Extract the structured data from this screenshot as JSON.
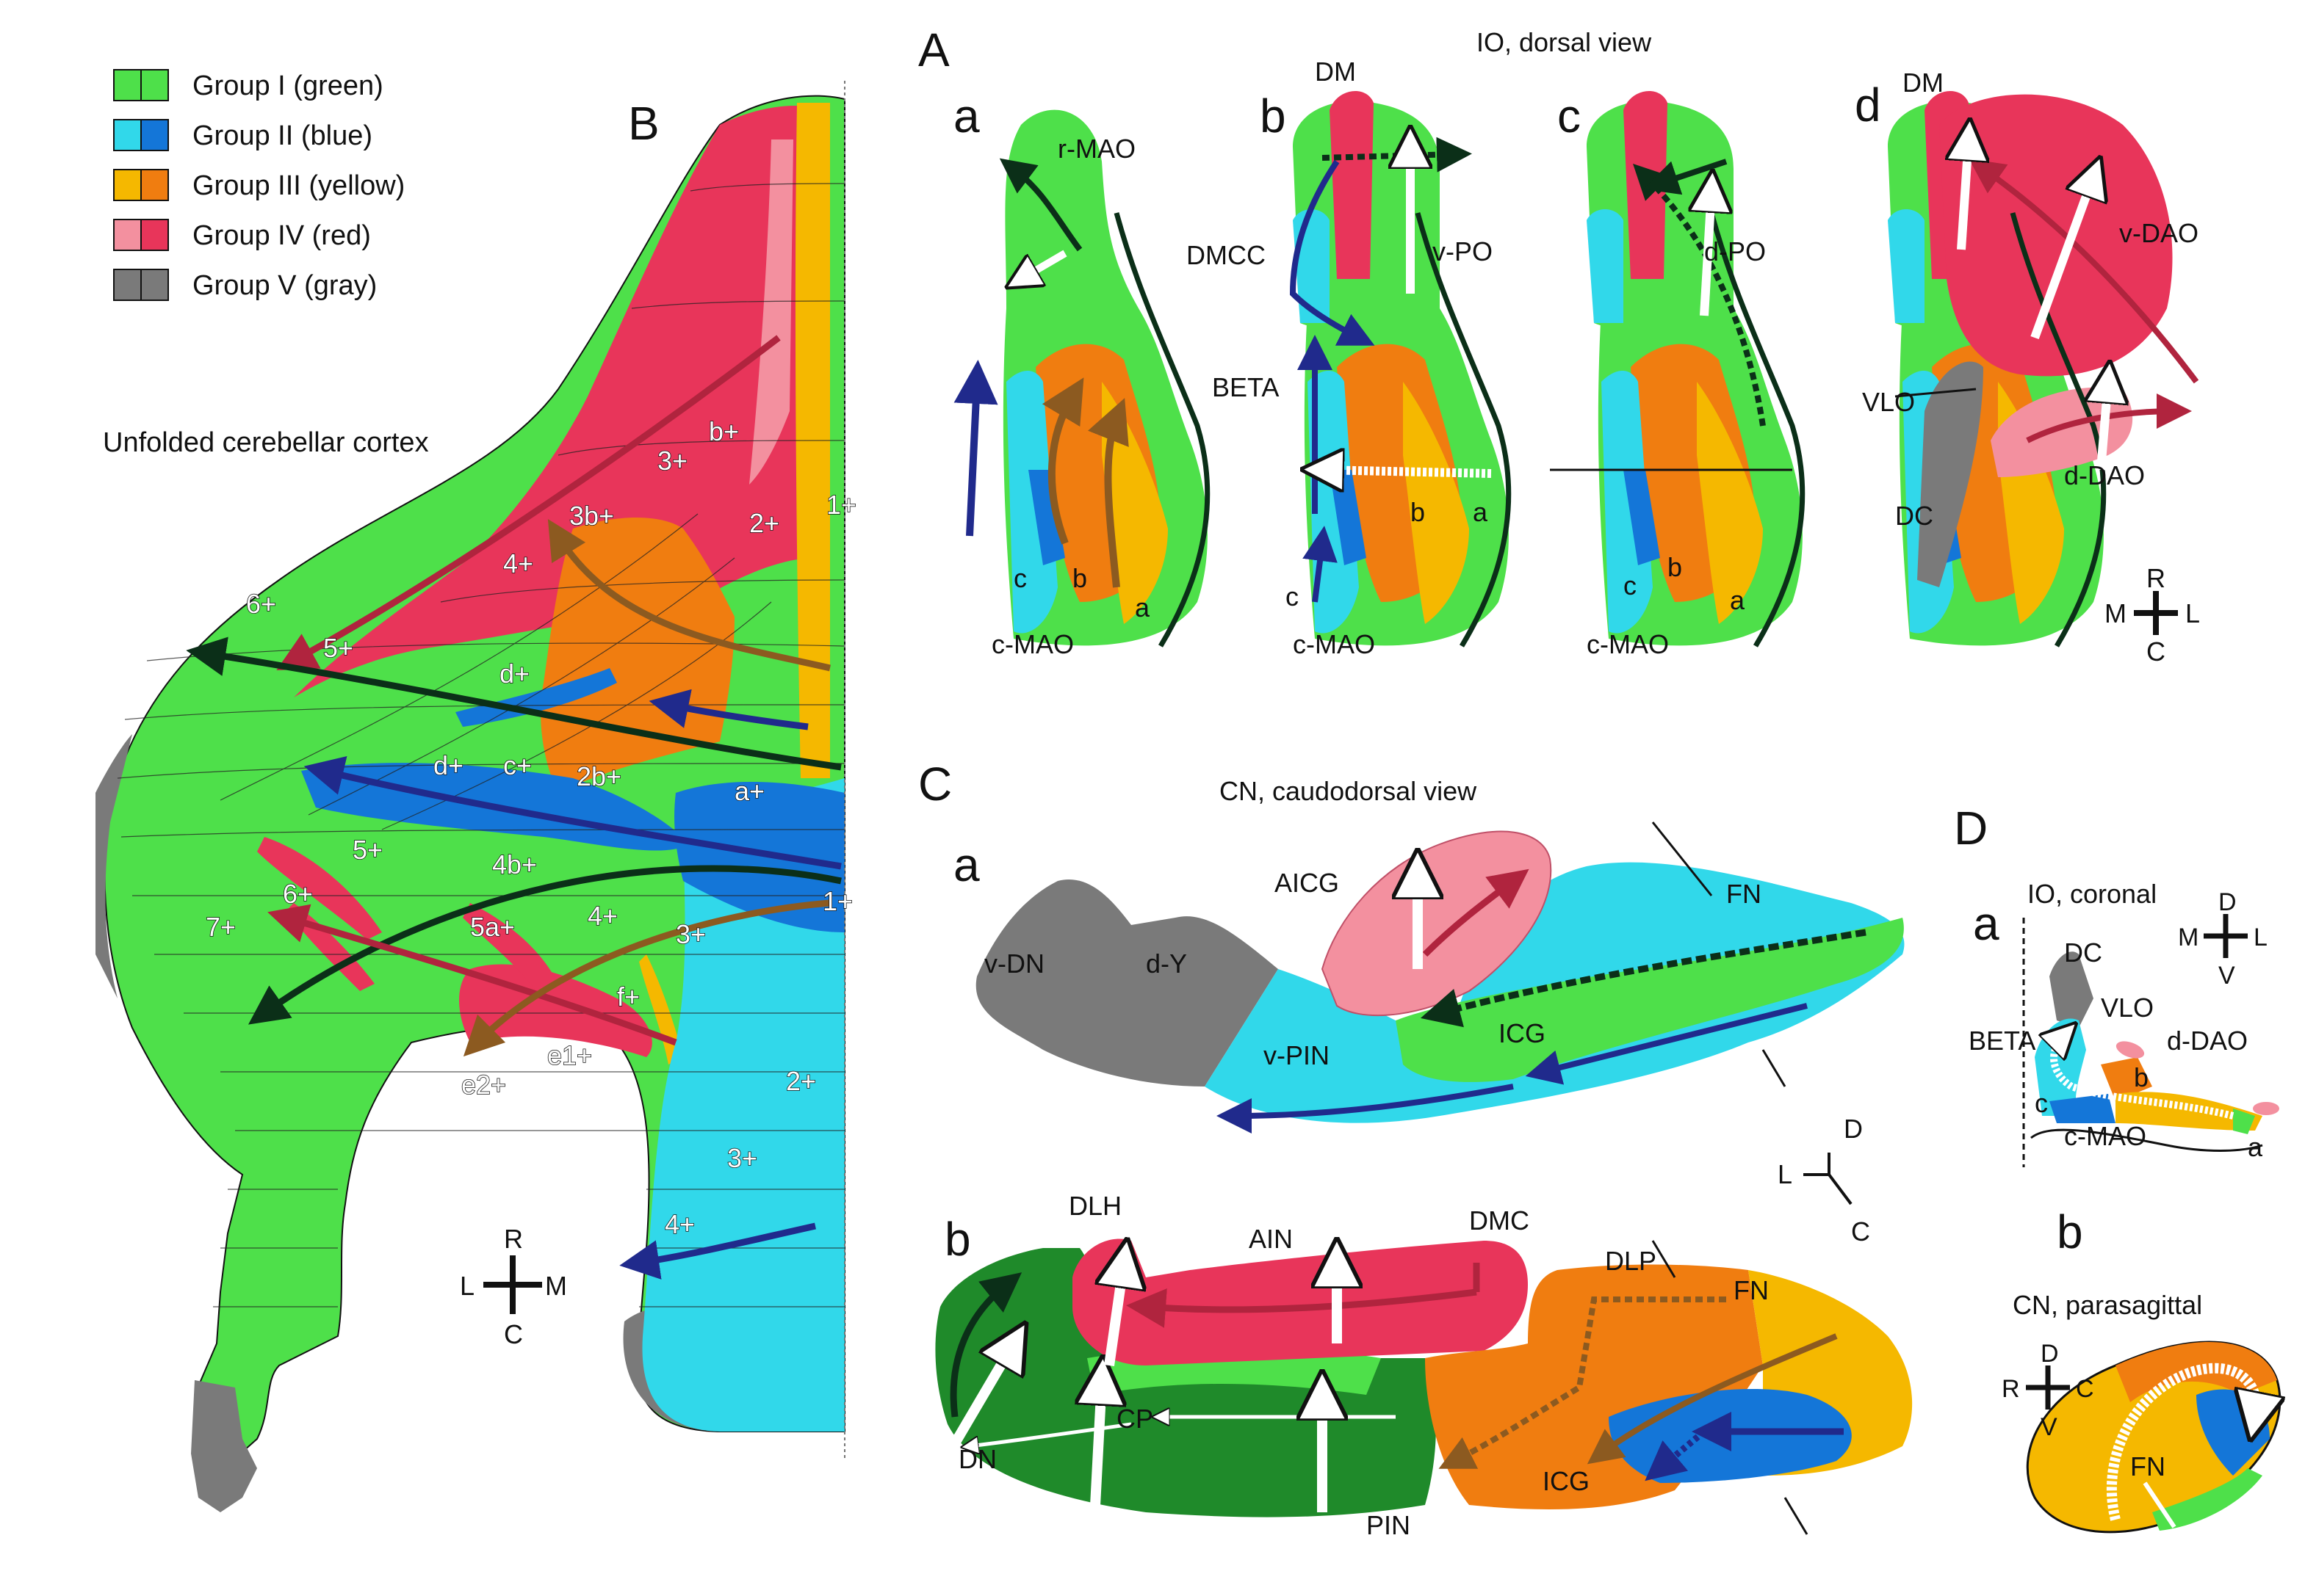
{
  "colors": {
    "group1": "#4ee04a",
    "group1_dark": "#1f8a2a",
    "group2": "#31d8ea",
    "group2_dark": "#1476d8",
    "group3": "#f5b800",
    "group3_dark": "#f07d10",
    "group4": "#e8355a",
    "group4_light": "#f3909f",
    "group5": "#7a7a7a",
    "arrow_dark": "#0b2f18",
    "arrow_blue": "#202a8c",
    "arrow_brown": "#8c5a20",
    "arrow_red": "#b0243e"
  },
  "legend": [
    {
      "label": "Group I (green)",
      "color": "#4ee04a",
      "color2": "#4ee04a"
    },
    {
      "label": "Group II (blue)",
      "color": "#31d8ea",
      "color2": "#1476d8"
    },
    {
      "label": "Group III (yellow)",
      "color": "#f5b800",
      "color2": "#f07d10"
    },
    {
      "label": "Group IV (red)",
      "color": "#f3909f",
      "color2": "#e8355a"
    },
    {
      "label": "Group V (gray)",
      "color": "#7a7a7a",
      "color2": "#7a7a7a"
    }
  ],
  "panel_b": {
    "letter": "B",
    "title": "Unfolded cerebellar cortex",
    "zones": [
      "1+",
      "2+",
      "3+",
      "b+",
      "3b+",
      "4+",
      "6+",
      "5+",
      "d+",
      "d+",
      "c+",
      "2b+",
      "a+",
      "5+",
      "4b+",
      "1+",
      "6+",
      "7+",
      "5a+",
      "4+",
      "3+",
      "f+",
      "e1+",
      "e2+",
      "2+",
      "3+",
      "4+"
    ],
    "orientation": {
      "up": "R",
      "down": "C",
      "left": "L",
      "right": "M"
    }
  },
  "panel_a": {
    "letter": "A",
    "title": "IO, dorsal view",
    "sub": [
      {
        "letter": "a",
        "labels": [
          "r-MAO",
          "c",
          "b",
          "a",
          "c-MAO"
        ]
      },
      {
        "letter": "b",
        "labels": [
          "DM",
          "DMCC",
          "v-PO",
          "BETA",
          "b",
          "a",
          "c",
          "c-MAO"
        ]
      },
      {
        "letter": "c",
        "labels": [
          "d-PO",
          "c",
          "b",
          "a",
          "c-MAO"
        ]
      },
      {
        "letter": "d",
        "labels": [
          "DM",
          "v-DAO",
          "VLO",
          "DC",
          "d-DAO"
        ]
      }
    ],
    "orientation": {
      "up": "R",
      "down": "C",
      "left": "M",
      "right": "L"
    }
  },
  "panel_c": {
    "letter": "C",
    "title": "CN, caudodorsal view",
    "a": {
      "letter": "a",
      "labels": [
        "AICG",
        "FN",
        "v-DN",
        "d-Y",
        "v-PIN",
        "ICG"
      ]
    },
    "b": {
      "letter": "b",
      "labels": [
        "DLH",
        "AIN",
        "DMC",
        "DLP",
        "FN",
        "CP",
        "DN",
        "PIN",
        "ICG"
      ]
    },
    "orientation": {
      "up": "D",
      "down": "C",
      "left": "L"
    }
  },
  "panel_d": {
    "letter": "D",
    "a": {
      "letter": "a",
      "title": "IO, coronal",
      "labels": [
        "DC",
        "VLO",
        "BETA",
        "d-DAO",
        "b",
        "c",
        "c-MAO",
        "a"
      ],
      "orientation": {
        "up": "D",
        "down": "V",
        "left": "M",
        "right": "L"
      }
    },
    "b": {
      "letter": "b",
      "title": "CN, parasagittal",
      "labels": [
        "FN"
      ],
      "orientation": {
        "up": "D",
        "down": "V",
        "left": "R",
        "right": "C"
      }
    }
  }
}
